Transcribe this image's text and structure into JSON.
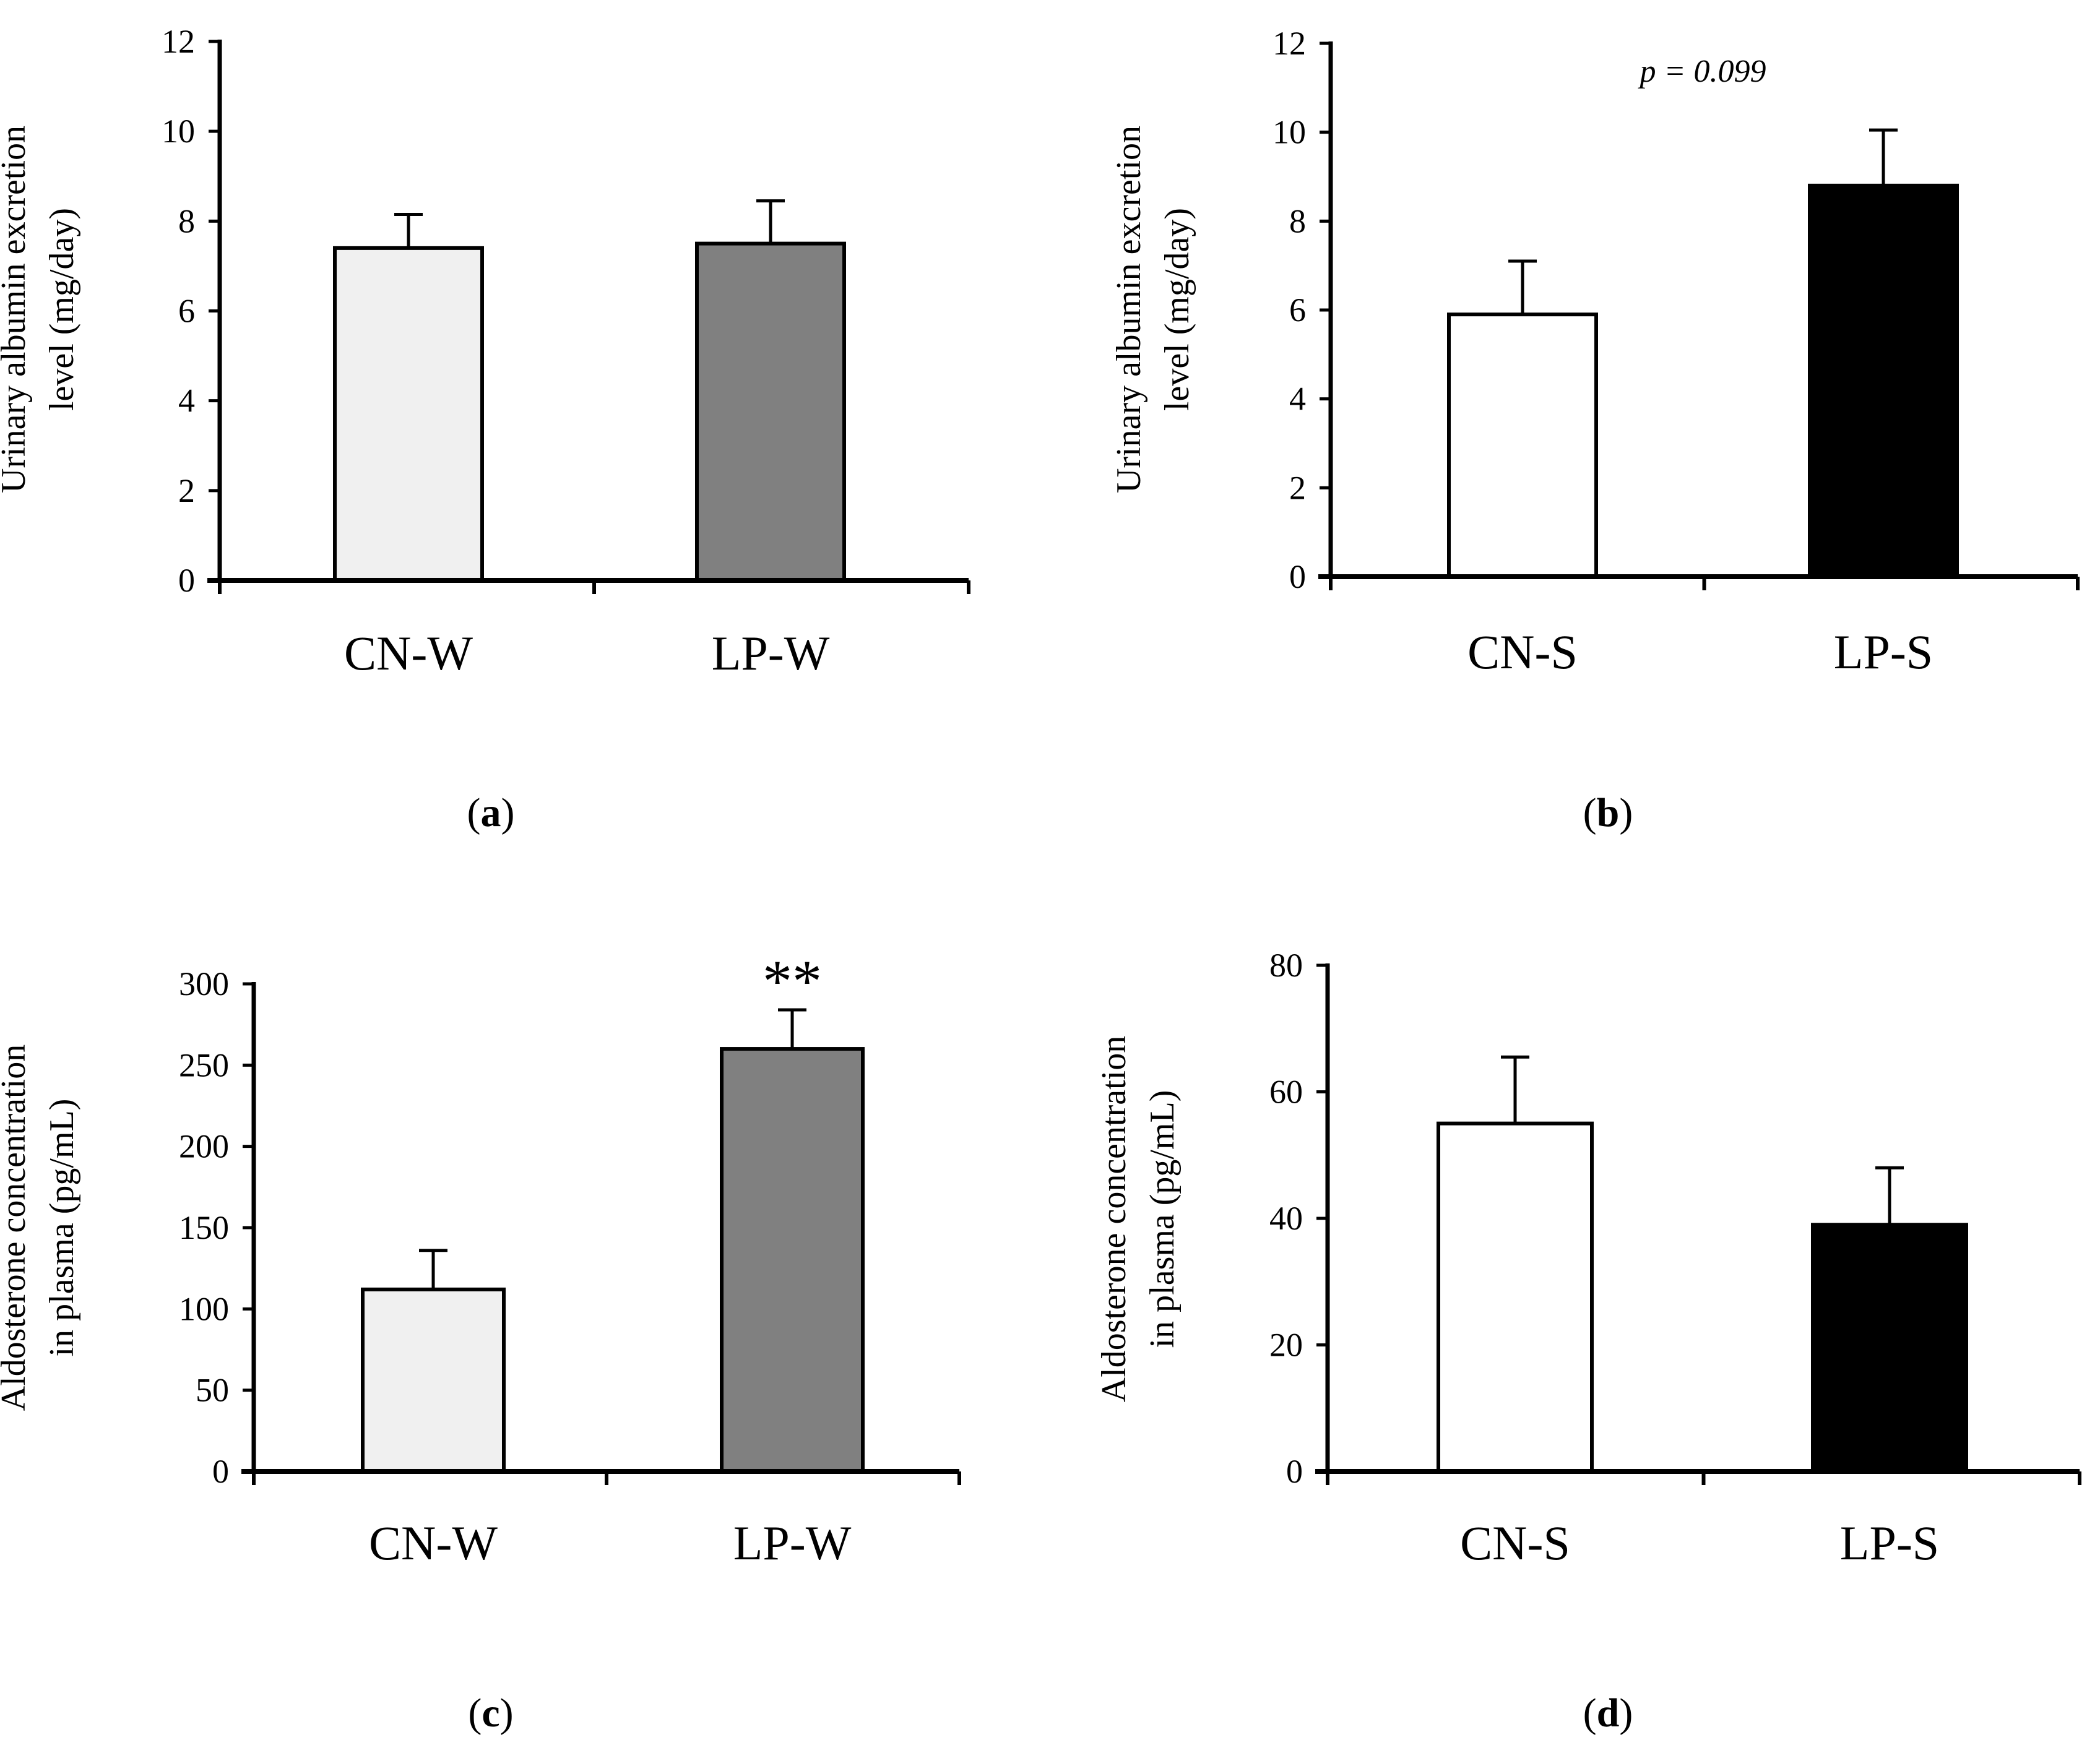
{
  "chart_data": [
    {
      "type": "bar",
      "panel": "a",
      "categories": [
        "CN-W",
        "LP-W"
      ],
      "values": [
        7.4,
        7.5
      ],
      "errors": [
        0.75,
        0.95
      ],
      "colors": [
        "#f0f0f0",
        "#808080"
      ],
      "ylabel_lines": [
        "Urinary albumin excretion",
        "level (mg/day)"
      ],
      "xlabel": "",
      "ylim": [
        0,
        12
      ],
      "yticks": [
        0,
        2,
        4,
        6,
        8,
        10,
        12
      ],
      "annotation": "",
      "panel_label": {
        "open": "(",
        "letter": "a",
        "close": ")"
      }
    },
    {
      "type": "bar",
      "panel": "b",
      "categories": [
        "CN-S",
        "LP-S"
      ],
      "values": [
        5.9,
        8.8
      ],
      "errors": [
        1.2,
        1.25
      ],
      "colors": [
        "#ffffff",
        "#000000"
      ],
      "ylabel_lines": [
        "Urinary albumin excretion",
        "level (mg/day)"
      ],
      "xlabel": "",
      "ylim": [
        0,
        12
      ],
      "yticks": [
        0,
        2,
        4,
        6,
        8,
        10,
        12
      ],
      "annotation": "p = 0.099",
      "panel_label": {
        "open": "(",
        "letter": "b",
        "close": ")"
      }
    },
    {
      "type": "bar",
      "panel": "c",
      "categories": [
        "CN-W",
        "LP-W"
      ],
      "values": [
        112,
        260
      ],
      "errors": [
        24,
        24
      ],
      "colors": [
        "#f0f0f0",
        "#808080"
      ],
      "ylabel_lines": [
        "Aldosterone concentration",
        "in plasma (pg/mL)"
      ],
      "xlabel": "",
      "ylim": [
        0,
        300
      ],
      "yticks": [
        0,
        50,
        100,
        150,
        200,
        250,
        300
      ],
      "annotation": "",
      "significance": [
        "",
        "**"
      ],
      "panel_label": {
        "open": "(",
        "letter": "c",
        "close": ")"
      }
    },
    {
      "type": "bar",
      "panel": "d",
      "categories": [
        "CN-S",
        "LP-S"
      ],
      "values": [
        55,
        39
      ],
      "errors": [
        10.5,
        9
      ],
      "colors": [
        "#ffffff",
        "#000000"
      ],
      "ylabel_lines": [
        "Aldosterone concentration",
        "in plasma (pg/mL)"
      ],
      "xlabel": "",
      "ylim": [
        0,
        80
      ],
      "yticks": [
        0,
        20,
        40,
        60,
        80
      ],
      "annotation": "",
      "panel_label": {
        "open": "(",
        "letter": "d",
        "close": ")"
      }
    }
  ]
}
